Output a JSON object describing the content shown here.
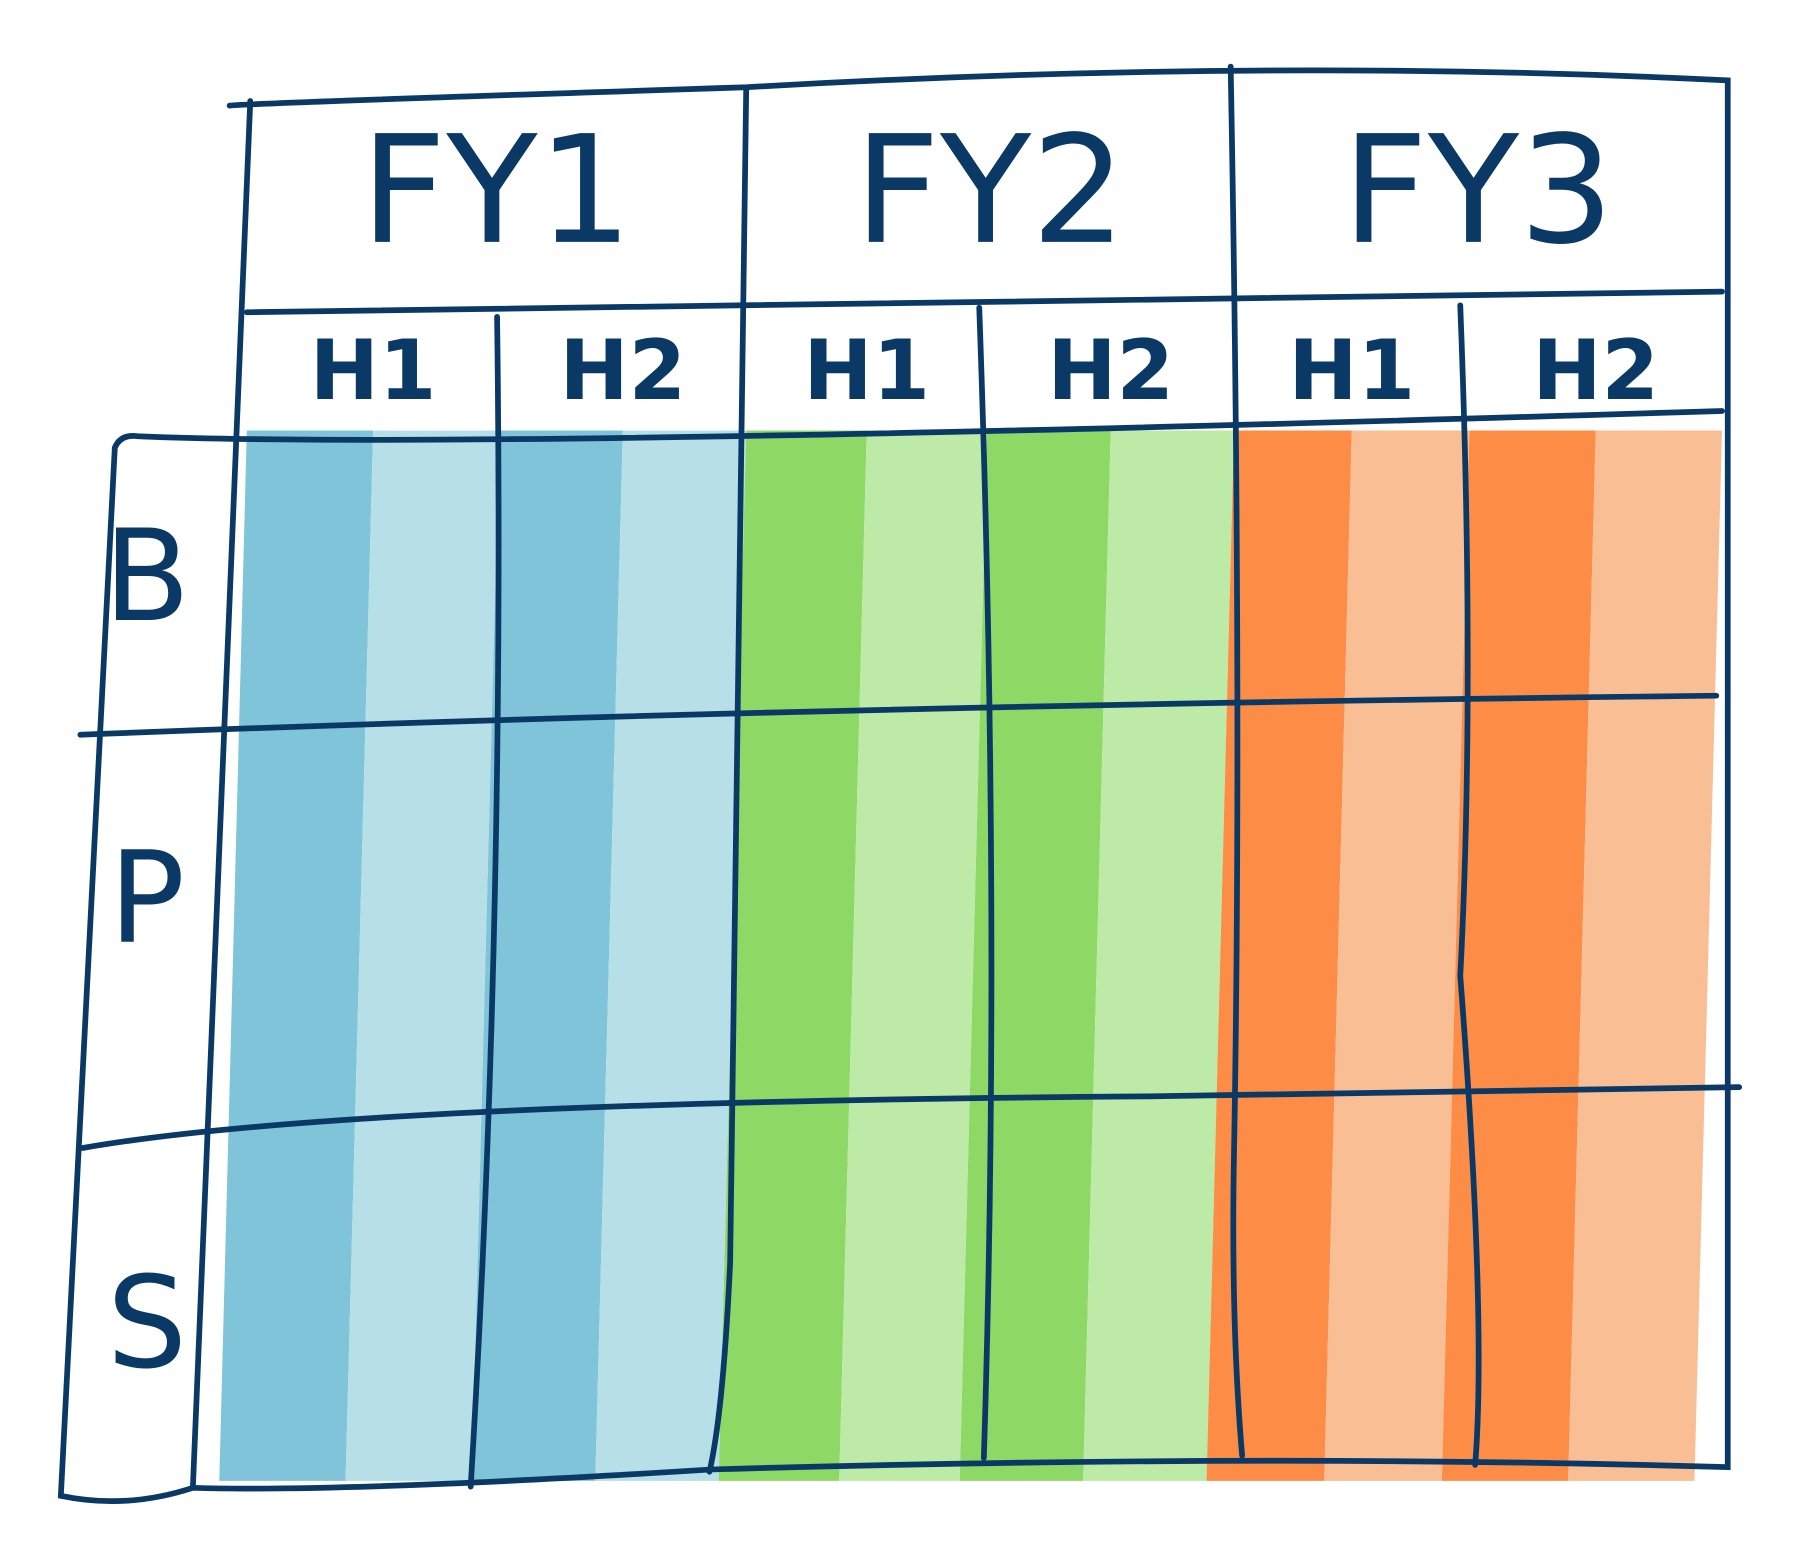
{
  "columns": [
    {
      "label": "FY1",
      "halves": [
        "H1",
        "H2"
      ]
    },
    {
      "label": "FY2",
      "halves": [
        "H1",
        "H2"
      ]
    },
    {
      "label": "FY3",
      "halves": [
        "H1",
        "H2"
      ]
    }
  ],
  "rows": [
    "B",
    "P",
    "S"
  ]
}
